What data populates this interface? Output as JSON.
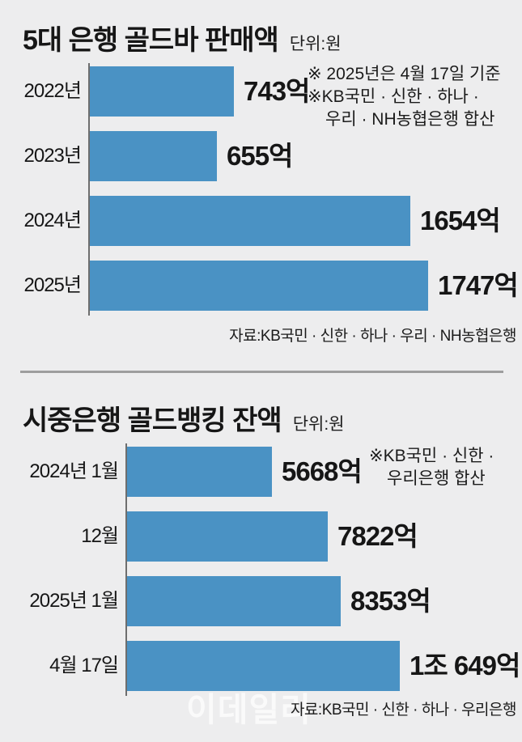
{
  "colors": {
    "background": "#ededee",
    "bar": "#4a92c4",
    "axis": "#6e6e6e",
    "divider": "#9e9e9e",
    "text": "#161616",
    "watermark_text": "#ffffff"
  },
  "watermark": "이데일리",
  "chart_data": [
    {
      "type": "bar",
      "orientation": "horizontal",
      "title": "5대 은행 골드바 판매액",
      "unit": "단위:원",
      "notes": [
        "※ 2025년은 4월 17일 기준",
        "※KB국민 · 신한 · 하나 ·",
        "우리 · NH농협은행 합산"
      ],
      "source": "자료:KB국민 · 신한 · 하나 · 우리 · NH농협은행",
      "categories": [
        "2022년",
        "2023년",
        "2024년",
        "2025년"
      ],
      "values": [
        743,
        655,
        1654,
        1747
      ],
      "value_labels": [
        "743억",
        "655억",
        "1654억",
        "1747억"
      ],
      "xlim": [
        0,
        1747
      ],
      "rows": [
        {
          "label": "2022년",
          "value": 743,
          "value_label": "743억"
        },
        {
          "label": "2023년",
          "value": 655,
          "value_label": "655억"
        },
        {
          "label": "2024년",
          "value": 1654,
          "value_label": "1654억"
        },
        {
          "label": "2025년",
          "value": 1747,
          "value_label": "1747억"
        }
      ]
    },
    {
      "type": "bar",
      "orientation": "horizontal",
      "title": "시중은행 골드뱅킹 잔액",
      "unit": "단위:원",
      "notes": [
        "※KB국민 · 신한 ·",
        "우리은행 합산"
      ],
      "source": "자료:KB국민 · 신한 · 하나 · 우리은행",
      "categories": [
        "2024년 1월",
        "12월",
        "2025년 1월",
        "4월 17일"
      ],
      "values": [
        5668,
        7822,
        8353,
        10649
      ],
      "value_labels": [
        "5668억",
        "7822억",
        "8353억",
        "1조 649억"
      ],
      "xlim": [
        0,
        10649
      ],
      "rows": [
        {
          "label": "2024년 1월",
          "value": 5668,
          "value_label": "5668억"
        },
        {
          "label": "12월",
          "value": 7822,
          "value_label": "7822억"
        },
        {
          "label": "2025년 1월",
          "value": 8353,
          "value_label": "8353억"
        },
        {
          "label": "4월 17일",
          "value": 10649,
          "value_label": "1조 649억"
        }
      ]
    }
  ]
}
